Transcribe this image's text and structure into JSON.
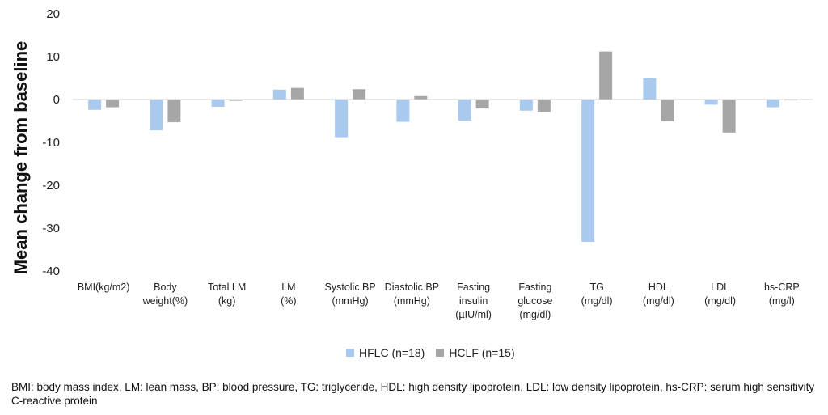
{
  "chart_data": {
    "type": "bar",
    "ylabel": "Mean change from baseline",
    "ylim": [
      -40,
      20
    ],
    "yticks": [
      20,
      10,
      0,
      -10,
      -20,
      -30,
      -40
    ],
    "grid": false,
    "legend_position": "bottom",
    "categories": [
      [
        "BMI(kg/m2)"
      ],
      [
        "Body",
        "weight(%)"
      ],
      [
        "Total LM",
        "(kg)"
      ],
      [
        "LM",
        "(%)"
      ],
      [
        "Systolic BP",
        "(mmHg)"
      ],
      [
        "Diastolic BP",
        "(mmHg)"
      ],
      [
        "Fasting",
        "insulin",
        "(µIU/ml)"
      ],
      [
        "Fasting",
        "glucose",
        "(mg/dl)"
      ],
      [
        "TG",
        "(mg/dl)"
      ],
      [
        "HDL",
        "(mg/dl)"
      ],
      [
        "LDL",
        "(mg/dl)"
      ],
      [
        "hs-CRP",
        "(mg/l)"
      ]
    ],
    "series": [
      {
        "name": "HFLC (n=18)",
        "color": "#a9c9ef",
        "values": [
          -2.4,
          -7.2,
          -1.7,
          2.3,
          -8.8,
          -5.2,
          -4.9,
          -2.6,
          -33.2,
          5.0,
          -1.2,
          -1.8
        ]
      },
      {
        "name": "HCLF (n=15)",
        "color": "#a6a6a6",
        "values": [
          -1.8,
          -5.3,
          -0.3,
          2.7,
          2.4,
          0.8,
          -2.1,
          -2.9,
          11.2,
          -5.1,
          -7.7,
          -0.2
        ]
      }
    ]
  },
  "footnote": "BMI: body mass index, LM: lean mass, BP: blood pressure, TG: triglyceride, HDL: high density lipoprotein, LDL: low density lipoprotein, hs-CRP: serum high sensitivity C-reactive protein"
}
